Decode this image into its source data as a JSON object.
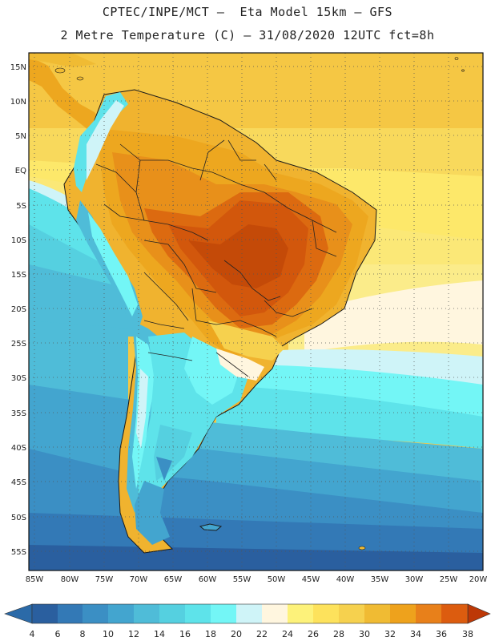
{
  "header": {
    "line1": "CPTEC/INPE/MCT –  Eta Model 15km – GFS",
    "line2": "2 Metre Temperature (C) – 31/08/2020 12UTC fct=8h"
  },
  "axes": {
    "lat_labels": [
      "15N",
      "10N",
      "5N",
      "EQ",
      "5S",
      "10S",
      "15S",
      "20S",
      "25S",
      "30S",
      "35S",
      "40S",
      "45S",
      "50S",
      "55S"
    ],
    "lon_labels": [
      "85W",
      "80W",
      "75W",
      "70W",
      "65W",
      "60W",
      "55W",
      "50W",
      "45W",
      "40W",
      "35W",
      "30W",
      "25W",
      "20W"
    ]
  },
  "legend": {
    "ticks": [
      "4",
      "6",
      "8",
      "10",
      "12",
      "14",
      "16",
      "18",
      "20",
      "22",
      "24",
      "26",
      "28",
      "30",
      "32",
      "34",
      "36",
      "38"
    ],
    "colors": [
      "#2a5f9f",
      "#3379b6",
      "#3b8fc4",
      "#43a5cf",
      "#4fbcd8",
      "#55d0e0",
      "#5ee3ea",
      "#73f6f6",
      "#cff4f8",
      "#fff6df",
      "#fdf27a",
      "#fde25c",
      "#f6d14e",
      "#f0bb33",
      "#eea21c",
      "#e8801a",
      "#dc5c0f",
      "#c33d06"
    ],
    "low_color": "#2b6aa8",
    "high_color": "#bd3806"
  }
}
